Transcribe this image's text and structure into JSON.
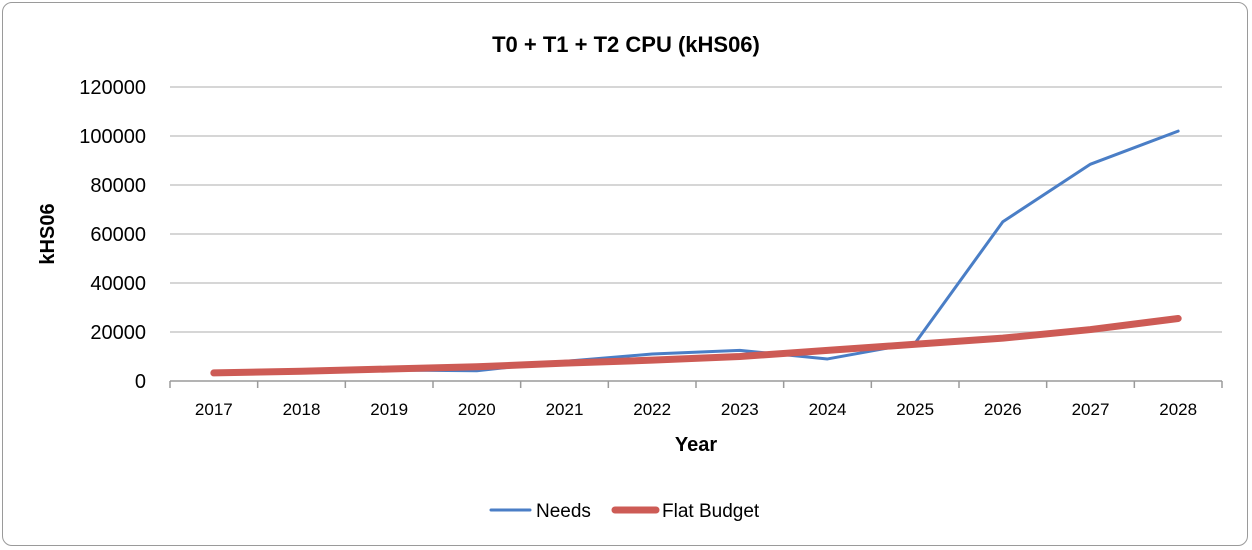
{
  "chart_data": {
    "type": "line",
    "title": "T0 + T1 + T2 CPU (kHS06)",
    "xlabel": "Year",
    "ylabel": "kHS06",
    "categories": [
      "2017",
      "2018",
      "2019",
      "2020",
      "2021",
      "2022",
      "2023",
      "2024",
      "2025",
      "2026",
      "2027",
      "2028"
    ],
    "ylim": [
      0,
      120000
    ],
    "yticks": [
      "0",
      "20000",
      "40000",
      "60000",
      "80000",
      "100000",
      "120000"
    ],
    "grid": true,
    "legend_position": "bottom",
    "series": [
      {
        "name": "Needs",
        "color": "#4a7ec6",
        "values": [
          3300,
          3900,
          4500,
          4200,
          8000,
          11000,
          12500,
          9000,
          15500,
          65000,
          88500,
          102000
        ]
      },
      {
        "name": "Flat Budget",
        "color": "#cd5b55",
        "values": [
          3300,
          4000,
          4900,
          5800,
          7300,
          8500,
          10000,
          12500,
          15000,
          17500,
          21000,
          25500
        ]
      }
    ]
  }
}
